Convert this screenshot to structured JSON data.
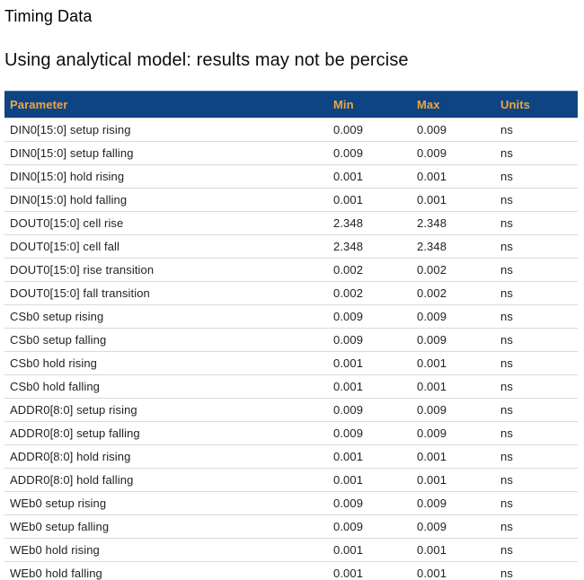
{
  "page": {
    "title": "Timing Data",
    "subtitle": "Using analytical model: results may not be percise"
  },
  "table": {
    "columns": [
      "Parameter",
      "Min",
      "Max",
      "Units"
    ],
    "rows": [
      {
        "parameter": "DIN0[15:0] setup rising",
        "min": "0.009",
        "max": "0.009",
        "units": "ns"
      },
      {
        "parameter": "DIN0[15:0] setup falling",
        "min": "0.009",
        "max": "0.009",
        "units": "ns"
      },
      {
        "parameter": "DIN0[15:0] hold rising",
        "min": "0.001",
        "max": "0.001",
        "units": "ns"
      },
      {
        "parameter": "DIN0[15:0] hold falling",
        "min": "0.001",
        "max": "0.001",
        "units": "ns"
      },
      {
        "parameter": "DOUT0[15:0] cell rise",
        "min": "2.348",
        "max": "2.348",
        "units": "ns"
      },
      {
        "parameter": "DOUT0[15:0] cell fall",
        "min": "2.348",
        "max": "2.348",
        "units": "ns"
      },
      {
        "parameter": "DOUT0[15:0] rise transition",
        "min": "0.002",
        "max": "0.002",
        "units": "ns"
      },
      {
        "parameter": "DOUT0[15:0] fall transition",
        "min": "0.002",
        "max": "0.002",
        "units": "ns"
      },
      {
        "parameter": "CSb0 setup rising",
        "min": "0.009",
        "max": "0.009",
        "units": "ns"
      },
      {
        "parameter": "CSb0 setup falling",
        "min": "0.009",
        "max": "0.009",
        "units": "ns"
      },
      {
        "parameter": "CSb0 hold rising",
        "min": "0.001",
        "max": "0.001",
        "units": "ns"
      },
      {
        "parameter": "CSb0 hold falling",
        "min": "0.001",
        "max": "0.001",
        "units": "ns"
      },
      {
        "parameter": "ADDR0[8:0] setup rising",
        "min": "0.009",
        "max": "0.009",
        "units": "ns"
      },
      {
        "parameter": "ADDR0[8:0] setup falling",
        "min": "0.009",
        "max": "0.009",
        "units": "ns"
      },
      {
        "parameter": "ADDR0[8:0] hold rising",
        "min": "0.001",
        "max": "0.001",
        "units": "ns"
      },
      {
        "parameter": "ADDR0[8:0] hold falling",
        "min": "0.001",
        "max": "0.001",
        "units": "ns"
      },
      {
        "parameter": "WEb0 setup rising",
        "min": "0.009",
        "max": "0.009",
        "units": "ns"
      },
      {
        "parameter": "WEb0 setup falling",
        "min": "0.009",
        "max": "0.009",
        "units": "ns"
      },
      {
        "parameter": "WEb0 hold rising",
        "min": "0.001",
        "max": "0.001",
        "units": "ns"
      },
      {
        "parameter": "WEb0 hold falling",
        "min": "0.001",
        "max": "0.001",
        "units": "ns"
      }
    ],
    "colors": {
      "header_bg": "#0e4484",
      "header_text": "#f0a63c",
      "row_divider": "#d9d9d9",
      "row_text": "#222222"
    }
  }
}
